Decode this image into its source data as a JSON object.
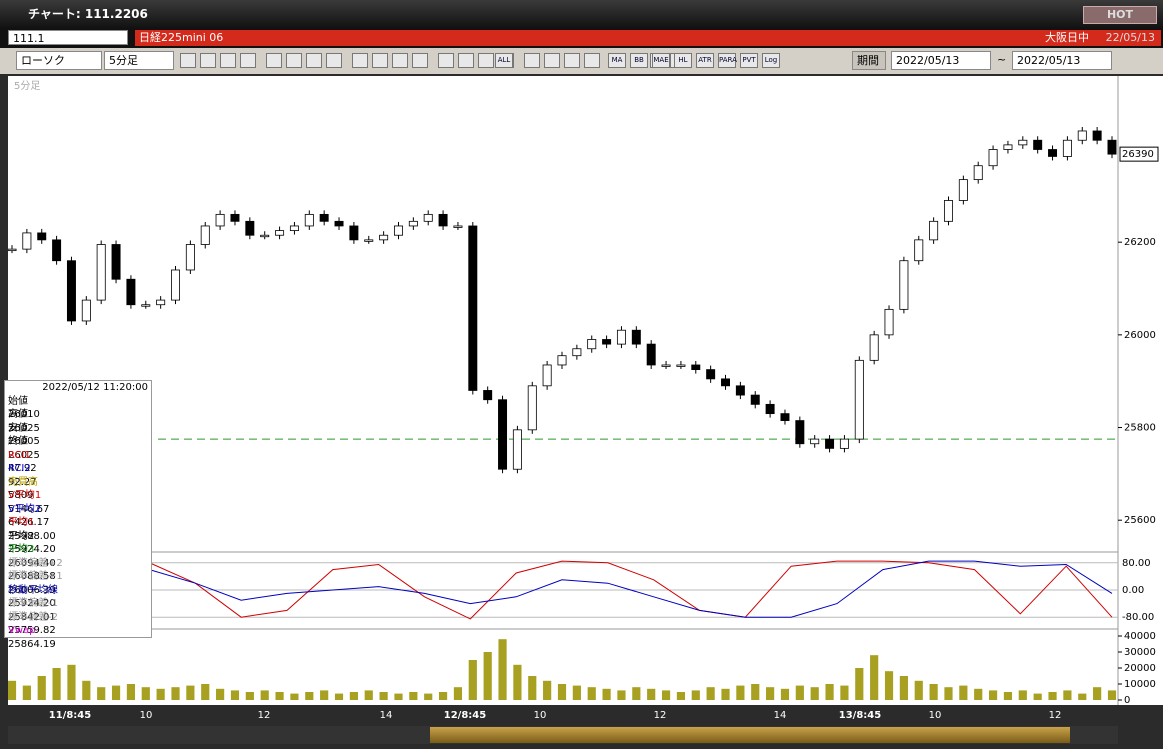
{
  "window_title": "チャート: 111.2206",
  "hot_button": "HOT",
  "symbol": "111.1",
  "instrument": "日経225mini 06",
  "session": "大阪日中",
  "session_date": "22/05/13",
  "toolbar": {
    "chart_kind": "ローソク",
    "interval": "5分足",
    "icons": [
      "ALL",
      "MA",
      "BB",
      "MAE",
      "HL",
      "ATR",
      "PARA",
      "PVT",
      "Log"
    ],
    "period_label": "期間",
    "from": "2022/05/13",
    "tilde": "~",
    "to": "2022/05/13"
  },
  "panel_label": "5分足",
  "info_panel": {
    "datetime": "2022/05/12  11:20:00",
    "rows": [
      [
        "始値",
        "26010",
        "#000"
      ],
      [
        "高値",
        "26025",
        "#000"
      ],
      [
        "安値",
        "26005",
        "#000"
      ],
      [
        "終値",
        "26025",
        "#000"
      ],
      [
        "RCI1",
        "47.92",
        "#d00"
      ],
      [
        "RCI2",
        "92.27",
        "#00c"
      ],
      [
        "売買高",
        "5809",
        "#b8a000"
      ],
      [
        "V平均1",
        "5146.67",
        "#d00"
      ],
      [
        "V平均2",
        "6426.17",
        "#00c"
      ],
      [
        "平均1",
        "25988.00",
        "#d00"
      ],
      [
        "平均2",
        "25924.20",
        "#000"
      ],
      [
        "平均3",
        "26094.40",
        "#080"
      ],
      [
        "標準偏差+2",
        "26088.58",
        "#999"
      ],
      [
        "標準偏差+1",
        "26006.39",
        "#999"
      ],
      [
        "移動平均線",
        "25924.20",
        "#00a"
      ],
      [
        "標準偏差-1",
        "25842.01",
        "#999"
      ],
      [
        "標準偏差-2",
        "25759.82",
        "#999"
      ],
      [
        "Vwap",
        "25864.19",
        "#c0c"
      ]
    ]
  },
  "chart_data": {
    "type": "candlestick",
    "color_up": "#ffffff",
    "color_down": "#000000",
    "values": [
      26185,
      26220,
      26205,
      26160,
      26030,
      26075,
      26195,
      26120,
      26065,
      26065,
      26075,
      26140,
      26195,
      26235,
      26260,
      26245,
      26215,
      26215,
      26225,
      26235,
      26260,
      26245,
      26235,
      26205,
      26205,
      26215,
      26235,
      26245,
      26260,
      26235,
      26235,
      25880,
      25860,
      25710,
      25795,
      25890,
      25935,
      25955,
      25970,
      25990,
      25980,
      26010,
      25980,
      25935,
      25935,
      25935,
      25925,
      25905,
      25890,
      25870,
      25850,
      25830,
      25815,
      25765,
      25775,
      25755,
      25775,
      25945,
      26000,
      26055,
      26160,
      26205,
      26245,
      26290,
      26335,
      26365,
      26400,
      26410,
      26420,
      26400,
      26385,
      26420,
      26440,
      26420,
      26390
    ],
    "ylim": [
      25540,
      26550
    ],
    "yticks": [
      25600,
      25800,
      26000,
      26200
    ],
    "reference_line": {
      "value": 25775,
      "color": "#2a9a2a"
    },
    "x_labels": [
      "11/8:45",
      "10",
      "12",
      "14",
      "12/8:45",
      "10",
      "12",
      "14",
      "13/8:45",
      "10",
      "12"
    ],
    "rci": {
      "ylim": [
        -100,
        100
      ],
      "yticks": [
        {
          "value": 80,
          "label": "80.00"
        },
        {
          "value": 0,
          "label": "0.00"
        },
        {
          "value": -80,
          "label": "-80.00"
        }
      ],
      "series": [
        {
          "name": "RCI1",
          "color": "#d00000",
          "values": [
            -30,
            70,
            85,
            80,
            20,
            -80,
            -60,
            60,
            75,
            -20,
            -85,
            50,
            85,
            80,
            30,
            -60,
            -80,
            70,
            85,
            85,
            80,
            60,
            -70,
            70,
            -80
          ]
        },
        {
          "name": "RCI2",
          "color": "#0000c0",
          "values": [
            -60,
            -10,
            50,
            60,
            20,
            -30,
            -10,
            0,
            10,
            -10,
            -40,
            -20,
            30,
            20,
            -20,
            -60,
            -80,
            -80,
            -40,
            60,
            85,
            85,
            70,
            75,
            -10
          ]
        }
      ]
    },
    "volume": {
      "color": "#a8a020",
      "ylim": [
        0,
        40000
      ],
      "yticks": [
        0,
        10000,
        20000,
        30000,
        40000
      ],
      "values": [
        12000,
        9000,
        15000,
        20000,
        22000,
        12000,
        8000,
        9000,
        10000,
        8000,
        7000,
        8000,
        9000,
        10000,
        7000,
        6000,
        5000,
        6000,
        5000,
        4000,
        5000,
        6000,
        4000,
        5000,
        6000,
        5000,
        4000,
        5000,
        4000,
        5000,
        8000,
        25000,
        30000,
        38000,
        22000,
        15000,
        12000,
        10000,
        9000,
        8000,
        7000,
        6000,
        8000,
        7000,
        6000,
        5000,
        6000,
        8000,
        7000,
        9000,
        10000,
        8000,
        7000,
        9000,
        8000,
        10000,
        9000,
        20000,
        28000,
        18000,
        15000,
        12000,
        10000,
        8000,
        9000,
        7000,
        6000,
        5000,
        6000,
        4000,
        5000,
        6000,
        4000,
        8000,
        6000
      ]
    }
  }
}
